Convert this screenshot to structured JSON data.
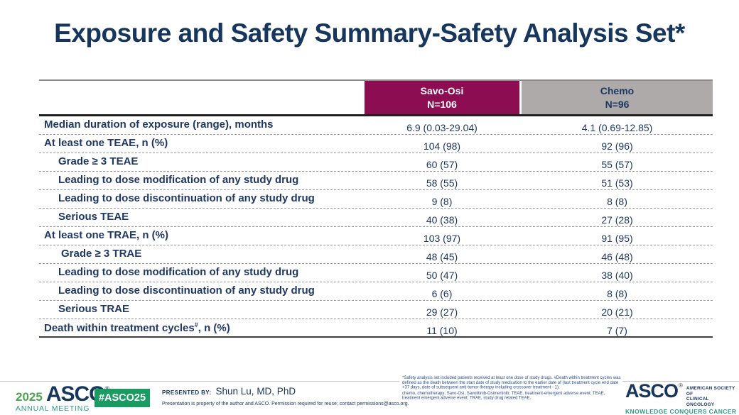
{
  "title": "Exposure and Safety Summary-Safety Analysis Set*",
  "table": {
    "header": {
      "col1_line1": "Savo-Osi",
      "col1_line2": "N=106",
      "col2_line1": "Chemo",
      "col2_line2": "N=96"
    },
    "rows": [
      {
        "label": "Median duration of exposure (range), months",
        "indent": 0,
        "savo_osi": "6.9 (0.03-29.04)",
        "chemo": "4.1 (0.69-12.85)"
      },
      {
        "label": "At least one TEAE, n (%)",
        "indent": 0,
        "savo_osi": "104 (98)",
        "chemo": "92 (96)"
      },
      {
        "label": "Grade ≥ 3 TEAE",
        "indent": 1,
        "savo_osi": "60 (57)",
        "chemo": "55 (57)"
      },
      {
        "label": "Leading to dose modification of any study drug",
        "indent": 1,
        "savo_osi": "58 (55)",
        "chemo": "51 (53)"
      },
      {
        "label": "Leading to dose discontinuation of any study drug",
        "indent": 1,
        "savo_osi": "9 (8)",
        "chemo": "8 (8)"
      },
      {
        "label": "Serious TEAE",
        "indent": 1,
        "savo_osi": "40 (38)",
        "chemo": "27 (28)"
      },
      {
        "label": "At least one TRAE, n (%)",
        "indent": 0,
        "savo_osi": "103 (97)",
        "chemo": "91 (95)"
      },
      {
        "label": "Grade ≥ 3 TRAE",
        "indent": 2,
        "savo_osi": "48 (45)",
        "chemo": "46 (48)"
      },
      {
        "label": "Leading to dose modification of any study drug",
        "indent": 1,
        "savo_osi": "50 (47)",
        "chemo": "38 (40)"
      },
      {
        "label": "Leading to dose discontinuation of any study drug",
        "indent": 1,
        "savo_osi": "6 (6)",
        "chemo": "8 (8)"
      },
      {
        "label": "Serious TRAE",
        "indent": 1,
        "savo_osi": "29 (27)",
        "chemo": "20 (21)"
      },
      {
        "label": "Death within treatment cycles",
        "sup": "#",
        "suffix": ", n (%)",
        "indent": 0,
        "savo_osi": "11 (10)",
        "chemo": "7 (7)"
      }
    ]
  },
  "footer": {
    "year": "2025",
    "asco": "ASCO",
    "reg": "®",
    "annual_meeting": "ANNUAL MEETING",
    "hashtag": "#ASCO25",
    "presented_by_label": "PRESENTED BY:",
    "presenter": "Shun Lu, MD, PhD",
    "permission": "Presentation is property of the author and ASCO. Permission required for reuse; contact permissions@asco.org."
  },
  "footnote": {
    "line1": "*Safety analysis set included patients received at least one dose of study drugs. #Death within treatment cycles was defined as the death between the start date of study medication to the earlier date of (last treatment cycle end date +37 days, date of subsequent anti-tumor therapy including crossover treatment - 1).",
    "line2": "chemo, chemotherapy; Savo-Osi, Savolitinib-Osimertinib; TEAE, treatment-emergent adverse event; TEAE, treatment emergent adverse event; TRAE, study drug related TEAE."
  },
  "logo_right": {
    "asco": "ASCO",
    "reg": "®",
    "society_line1": "AMERICAN SOCIETY OF",
    "society_line2": "CLINICAL ONCOLOGY",
    "tagline": "KNOWLEDGE CONQUERS CANCER"
  },
  "colors": {
    "navy": "#17365D",
    "table_navy": "#1F3864",
    "maroon": "#8C0D52",
    "header_gray": "#ADAAA9",
    "badge_green": "#199B62",
    "logo_green": "#4BA452",
    "teal": "#2F9C89"
  }
}
